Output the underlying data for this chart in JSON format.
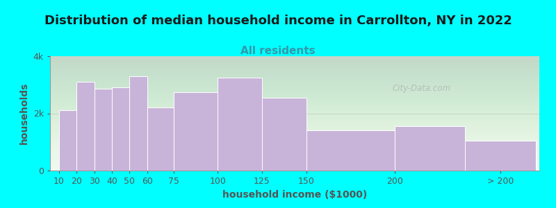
{
  "title": "Distribution of median household income in Carrollton, NY in 2022",
  "subtitle": "All residents",
  "xlabel": "household income ($1000)",
  "ylabel": "households",
  "background_color": "#00FFFF",
  "bar_color": "#c9b4d9",
  "bar_edge_color": "#ffffff",
  "values": [
    2100,
    3100,
    2850,
    2900,
    3300,
    2200,
    2750,
    3250,
    2550,
    1400,
    1550,
    1050
  ],
  "ylim": [
    0,
    4000
  ],
  "ytick_labels": [
    "0",
    "2k",
    "4k"
  ],
  "ytick_vals": [
    0,
    2000,
    4000
  ],
  "watermark": "City-Data.com",
  "title_fontsize": 13,
  "subtitle_fontsize": 11,
  "label_fontsize": 10,
  "tick_fontsize": 9,
  "subtitle_color": "#3399aa",
  "title_color": "#1a1a1a",
  "label_color": "#555555",
  "tick_color": "#555555"
}
